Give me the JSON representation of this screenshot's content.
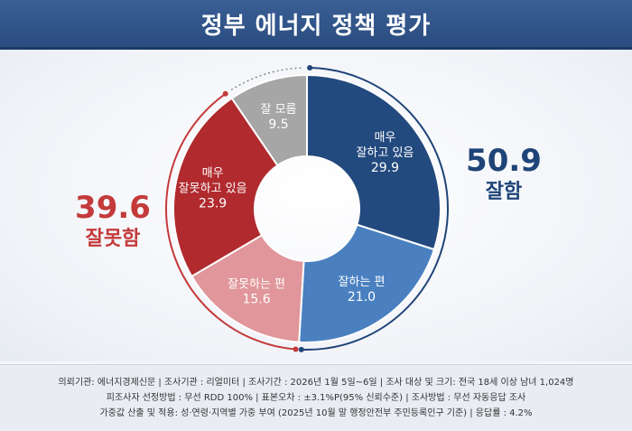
{
  "title": "정부 에너지 정책 평가",
  "chart_data": {
    "type": "pie",
    "variant": "donut",
    "title": "정부 에너지 정책 평가",
    "segments": [
      {
        "label": "매우 잘하고 있음",
        "label_lines": [
          "매우",
          "잘하고 있음"
        ],
        "value": 29.9,
        "color": "#234a7e"
      },
      {
        "label": "잘하는 편",
        "label_lines": [
          "잘하는 편"
        ],
        "value": 21.0,
        "color": "#4a80c0"
      },
      {
        "label": "잘못하는 편",
        "label_lines": [
          "잘못하는 편"
        ],
        "value": 15.6,
        "color": "#e0969a"
      },
      {
        "label": "매우 잘못하고 있음",
        "label_lines": [
          "매우",
          "잘못하고 있음"
        ],
        "value": 23.9,
        "color": "#b02a2e"
      },
      {
        "label": "잘 모름",
        "label_lines": [
          "잘 모름"
        ],
        "value": 9.5,
        "color": "#a6a6a6"
      }
    ],
    "summary": {
      "positive": {
        "value": "50.9",
        "label": "잘함",
        "color": "#1f4478"
      },
      "negative": {
        "value": "39.6",
        "label": "잘못함",
        "color": "#c43a3a"
      }
    }
  },
  "footer": {
    "line1": "의뢰기관: 에너지경제신문 | 조사기관 : 리얼미터 | 조사기간 : 2026년 1월 5일~6일 | 조사 대상 및 크기: 전국 18세 이상 남녀 1,024명",
    "line2": "피조사자 선정방법 : 무선 RDD 100% | 표본오차 : ±3.1%P(95% 신뢰수준) | 조사방법 : 무선 자동응답 조사",
    "line3": "가중값 산출 및 적용: 성·연령·지역별 가중 부여 (2025년 10월 말 행정안전부 주민등록인구 기준) | 응답률 : 4.2%"
  }
}
